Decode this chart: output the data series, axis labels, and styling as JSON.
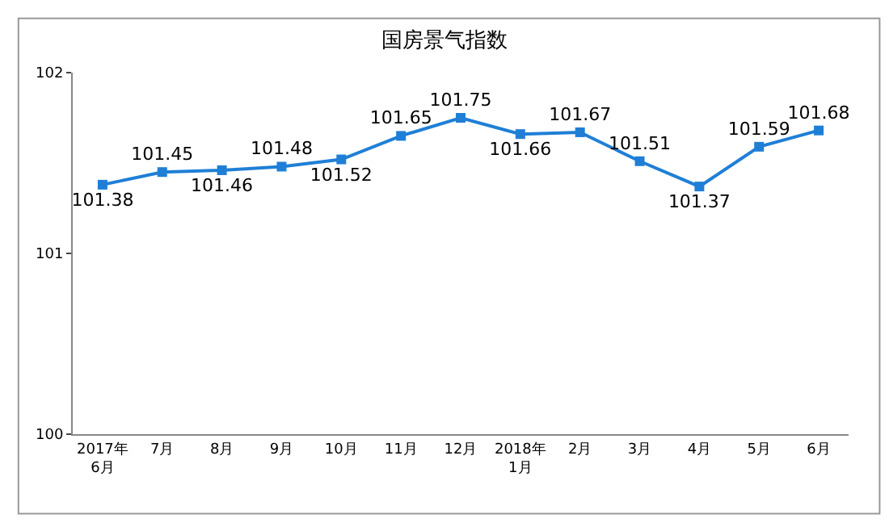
{
  "chart_data": {
    "type": "line",
    "title": "国房景气指数",
    "categories": [
      "2017年\n6月",
      "7月",
      "8月",
      "9月",
      "10月",
      "11月",
      "12月",
      "2018年\n1月",
      "2月",
      "3月",
      "4月",
      "5月",
      "6月"
    ],
    "series": [
      {
        "color": "#1f7fd6",
        "values": [
          101.38,
          101.45,
          101.46,
          101.48,
          101.52,
          101.65,
          101.75,
          101.66,
          101.67,
          101.51,
          101.37,
          101.59,
          101.68
        ]
      }
    ],
    "ylim": [
      100,
      102
    ],
    "yticks": [
      100,
      101,
      102
    ],
    "data_labels": true,
    "marker": "square",
    "line_style": "solid"
  }
}
